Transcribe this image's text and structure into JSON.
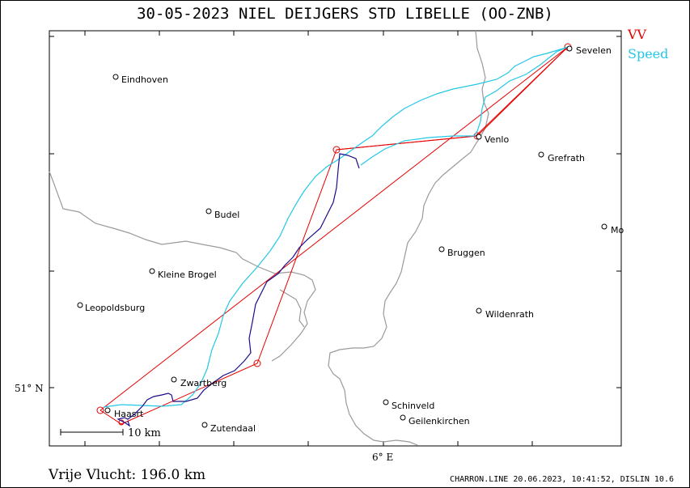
{
  "title": "30-05-2023   NIEL DEIJGERS   STD LIBELLE (OO-ZNB)",
  "legend": [
    {
      "label": "VV",
      "color": "#e60000"
    },
    {
      "label": "Speed",
      "color": "#22c8e6"
    }
  ],
  "footer": {
    "distance": "Vrije Vlucht:  196.0 km",
    "credits": "CHARRON.LINE 20.06.2023, 10:41:52, DISLIN 10.6"
  },
  "axes": {
    "lat_label": "51° N",
    "lon_label": "6° E"
  },
  "scale_label": "10 km",
  "places": [
    "Eindhoven",
    "Sevelen",
    "Venlo",
    "Grefrath",
    "Budel",
    "Mo",
    "Bruggen",
    "Kleine Brogel",
    "Leopoldsburg",
    "Wildenrath",
    "Zwartberg",
    "Haasrt",
    "Zutendaal",
    "Schinveld",
    "Geilenkirchen"
  ],
  "colors": {
    "route": "#e60000",
    "track_speed": "#22c8e6",
    "track_climb": "#1a0d8c",
    "border": "#9a9a9a"
  }
}
